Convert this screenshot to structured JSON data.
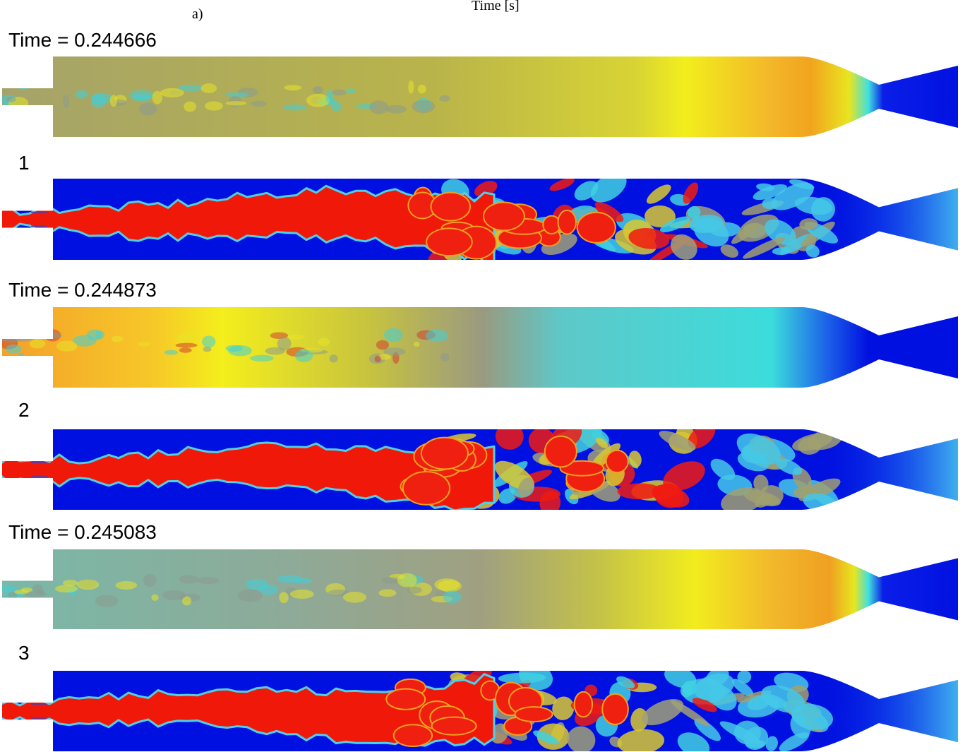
{
  "header": {
    "label": "a)",
    "axis_label": "Time [s]"
  },
  "panels": [
    {
      "time_label": "Time = 0.244666",
      "number": "1"
    },
    {
      "time_label": "Time = 0.244873",
      "number": "2"
    },
    {
      "time_label": "Time = 0.245083",
      "number": "3"
    }
  ]
}
